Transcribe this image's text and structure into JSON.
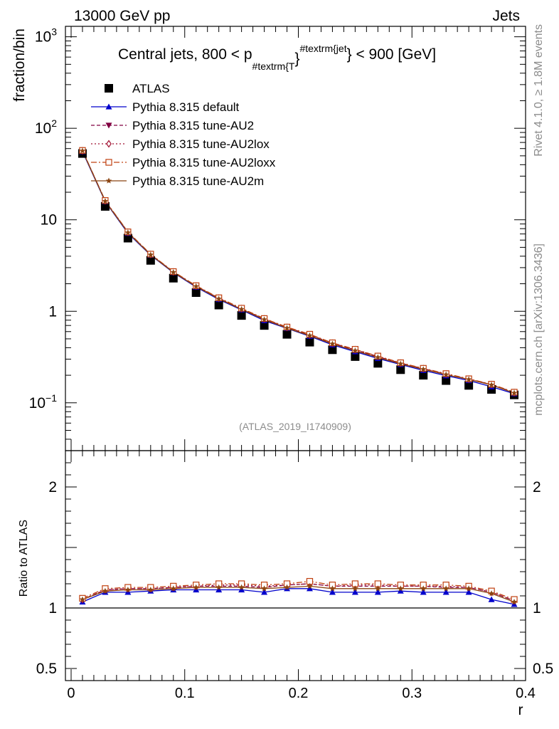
{
  "header": {
    "left": "13000 GeV pp",
    "right": "Jets"
  },
  "side": {
    "rivet": "Rivet 4.1.0, ≥ 1.8M events",
    "mcplots": "mcplots.cern.ch [arXiv:1306.3436]"
  },
  "watermark": "(ATLAS_2019_I1740909)",
  "chart_data": {
    "type": "line",
    "title": {
      "prefix": "Central jets, 800 < p",
      "sub": "#textrm{T",
      "brace1": "}",
      "sup": "#textrm{jet",
      "brace2": "}",
      "suffix": " < 900 [GeV]"
    },
    "xlabel": "r",
    "ylabel": "fraction/bin",
    "ratio_ylabel": "Ratio to ATLAS",
    "xlim": [
      -0.005,
      0.4
    ],
    "ylim": [
      0.03,
      1300
    ],
    "ratio_ylim": [
      0.4,
      2.3
    ],
    "x_ticks": [
      {
        "v": 0,
        "label": "0"
      },
      {
        "v": 0.1,
        "label": "0.1"
      },
      {
        "v": 0.2,
        "label": "0.2"
      },
      {
        "v": 0.3,
        "label": "0.3"
      },
      {
        "v": 0.4,
        "label": "0.4"
      }
    ],
    "y_ticks": [
      {
        "v": 1000,
        "base": "10",
        "exp": "3"
      },
      {
        "v": 100,
        "base": "10",
        "exp": "2"
      },
      {
        "v": 10,
        "base": "10",
        "exp": ""
      },
      {
        "v": 1,
        "base": "1",
        "exp": ""
      },
      {
        "v": 0.1,
        "base": "10",
        "exp": "−1"
      }
    ],
    "ratio_y_ticks": [
      {
        "v": 2,
        "label": "2"
      },
      {
        "v": 1,
        "label": "1"
      },
      {
        "v": 0.5,
        "label": "0.5"
      }
    ],
    "x": [
      0.01,
      0.03,
      0.05,
      0.07,
      0.09,
      0.11,
      0.13,
      0.15,
      0.17,
      0.19,
      0.21,
      0.23,
      0.25,
      0.27,
      0.29,
      0.31,
      0.33,
      0.35,
      0.37,
      0.39
    ],
    "data": {
      "name": "ATLAS",
      "color": "#000000",
      "values": [
        53.0,
        14.0,
        6.3,
        3.6,
        2.3,
        1.6,
        1.17,
        0.9,
        0.7,
        0.56,
        0.46,
        0.38,
        0.32,
        0.27,
        0.23,
        0.2,
        0.175,
        0.155,
        0.14,
        0.122
      ]
    },
    "series": [
      {
        "name": "Pythia 8.315 default",
        "color": "#0000cc",
        "marker": "triangle-up",
        "dash": "",
        "ratio": [
          1.05,
          1.13,
          1.13,
          1.14,
          1.15,
          1.15,
          1.15,
          1.15,
          1.13,
          1.16,
          1.16,
          1.13,
          1.13,
          1.13,
          1.14,
          1.13,
          1.13,
          1.13,
          1.07,
          1.03
        ]
      },
      {
        "name": "Pythia 8.315 tune-AU2",
        "color": "#800040",
        "marker": "triangle-down",
        "dash": "5,3",
        "ratio": [
          1.07,
          1.15,
          1.16,
          1.16,
          1.17,
          1.18,
          1.18,
          1.18,
          1.17,
          1.19,
          1.2,
          1.18,
          1.18,
          1.18,
          1.18,
          1.18,
          1.17,
          1.17,
          1.13,
          1.06
        ]
      },
      {
        "name": "Pythia 8.315 tune-AU2lox",
        "color": "#a01030",
        "marker": "diamond-open",
        "dash": "2,3",
        "ratio": [
          1.07,
          1.15,
          1.16,
          1.16,
          1.17,
          1.18,
          1.19,
          1.19,
          1.18,
          1.19,
          1.2,
          1.18,
          1.19,
          1.19,
          1.18,
          1.18,
          1.18,
          1.17,
          1.13,
          1.06
        ]
      },
      {
        "name": "Pythia 8.315 tune-AU2loxx",
        "color": "#c04010",
        "marker": "square-open",
        "dash": "8,3,2,3",
        "ratio": [
          1.08,
          1.16,
          1.17,
          1.17,
          1.18,
          1.19,
          1.2,
          1.2,
          1.19,
          1.2,
          1.22,
          1.19,
          1.2,
          1.2,
          1.19,
          1.19,
          1.19,
          1.18,
          1.14,
          1.07
        ]
      },
      {
        "name": "Pythia 8.315 tune-AU2m",
        "color": "#8b4513",
        "marker": "star",
        "dash": "",
        "ratio": [
          1.07,
          1.14,
          1.15,
          1.15,
          1.16,
          1.17,
          1.17,
          1.17,
          1.16,
          1.17,
          1.18,
          1.16,
          1.16,
          1.16,
          1.16,
          1.16,
          1.16,
          1.16,
          1.12,
          1.05
        ]
      }
    ]
  }
}
